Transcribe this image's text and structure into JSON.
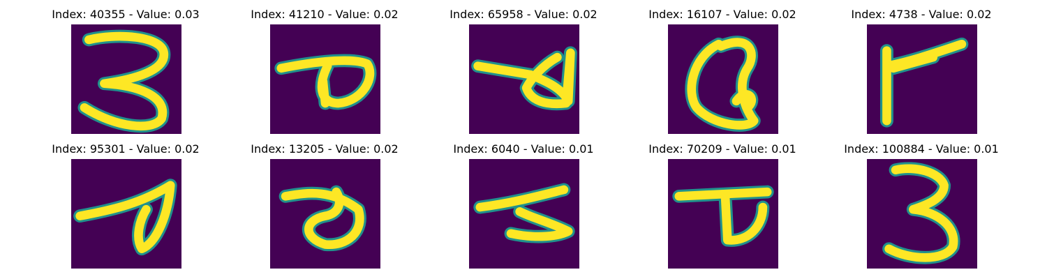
{
  "figure": {
    "panels": [
      {
        "title": "Index: 40355 - Value: 0.03",
        "glyph": "digit-3-like-stroke"
      },
      {
        "title": "Index: 41210 - Value: 0.02",
        "glyph": "loop-with-tail-stroke"
      },
      {
        "title": "Index: 65958 - Value: 0.02",
        "glyph": "loop-with-tail-stroke"
      },
      {
        "title": "Index: 16107 - Value: 0.02",
        "glyph": "letter-a-like-stroke"
      },
      {
        "title": "Index: 4738 - Value: 0.02",
        "glyph": "angled-stroke"
      },
      {
        "title": "Index: 95301 - Value: 0.02",
        "glyph": "loop-with-tail-stroke"
      },
      {
        "title": "Index: 13205 - Value: 0.02",
        "glyph": "thick-loop-stroke"
      },
      {
        "title": "Index: 6040 - Value: 0.01",
        "glyph": "angled-stroke"
      },
      {
        "title": "Index: 70209 - Value: 0.01",
        "glyph": "loop-with-tail-stroke"
      },
      {
        "title": "Index: 100884 - Value: 0.01",
        "glyph": "digit-3-stroke"
      }
    ],
    "colors": {
      "background": "#440154",
      "stroke_core": "#fde725",
      "stroke_edge": "#21918c"
    }
  }
}
